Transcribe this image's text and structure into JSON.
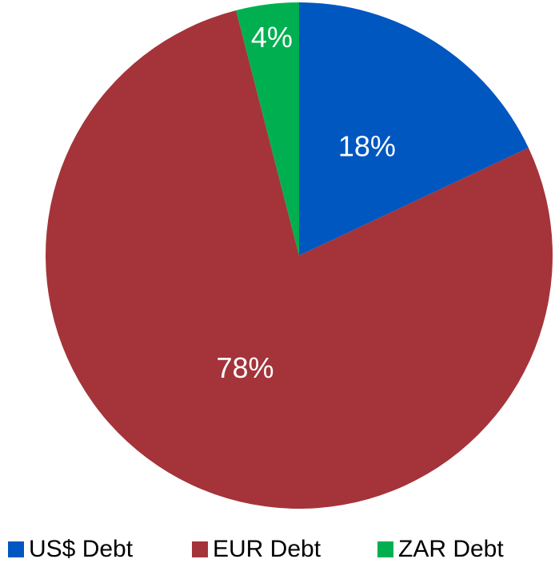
{
  "chart_data": {
    "type": "pie",
    "categories": [
      "US$ Debt",
      "EUR Debt",
      "ZAR Debt"
    ],
    "values": [
      18,
      78,
      4
    ],
    "value_labels": [
      "18%",
      "78%",
      "4%"
    ],
    "colors": [
      "#0057c0",
      "#a4343a",
      "#00b050"
    ],
    "legend": "bottom"
  }
}
